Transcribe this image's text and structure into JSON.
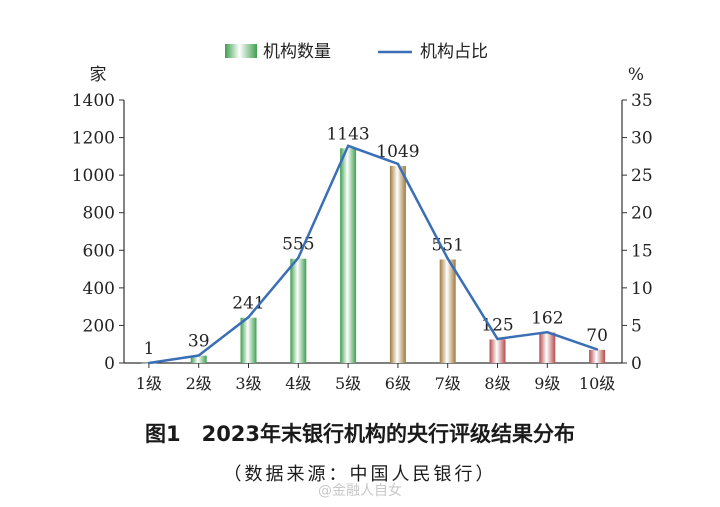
{
  "chart_data": {
    "type": "bar",
    "title": "图1　2023年末银行机构的央行评级结果分布",
    "subtitle": "（数据来源：中国人民银行）",
    "categories": [
      "1级",
      "2级",
      "3级",
      "4级",
      "5级",
      "6级",
      "7级",
      "8级",
      "9级",
      "10级"
    ],
    "series": [
      {
        "name": "机构数量",
        "type": "bar",
        "axis": "left",
        "values": [
          1,
          39,
          241,
          555,
          1143,
          1049,
          551,
          125,
          162,
          70
        ],
        "data_labels": [
          "1",
          "39",
          "241",
          "555",
          "1143",
          "1049",
          "551",
          "125",
          "162",
          "70"
        ],
        "colors": [
          "#3f9f4f",
          "#3f9f4f",
          "#3f9f4f",
          "#3f9f4f",
          "#3f9f4f",
          "#a07a3c",
          "#a07a3c",
          "#b54b4b",
          "#b54b4b",
          "#b54b4b"
        ]
      },
      {
        "name": "机构占比",
        "type": "line",
        "axis": "right",
        "color": "#3a6fb5",
        "values": [
          0.0,
          1.0,
          6.1,
          14.0,
          28.9,
          26.5,
          13.9,
          3.2,
          4.1,
          1.8
        ]
      }
    ],
    "y_left": {
      "label": "家",
      "range": [
        0,
        1400
      ],
      "ticks": [
        "0",
        "200",
        "400",
        "600",
        "800",
        "1000",
        "1200",
        "1400"
      ]
    },
    "y_right": {
      "label": "%",
      "range": [
        0,
        35
      ],
      "ticks": [
        "0",
        "5",
        "10",
        "15",
        "20",
        "25",
        "30",
        "35"
      ]
    },
    "grid": false,
    "legend_position": "top-center"
  },
  "watermark": "@金融人自女"
}
